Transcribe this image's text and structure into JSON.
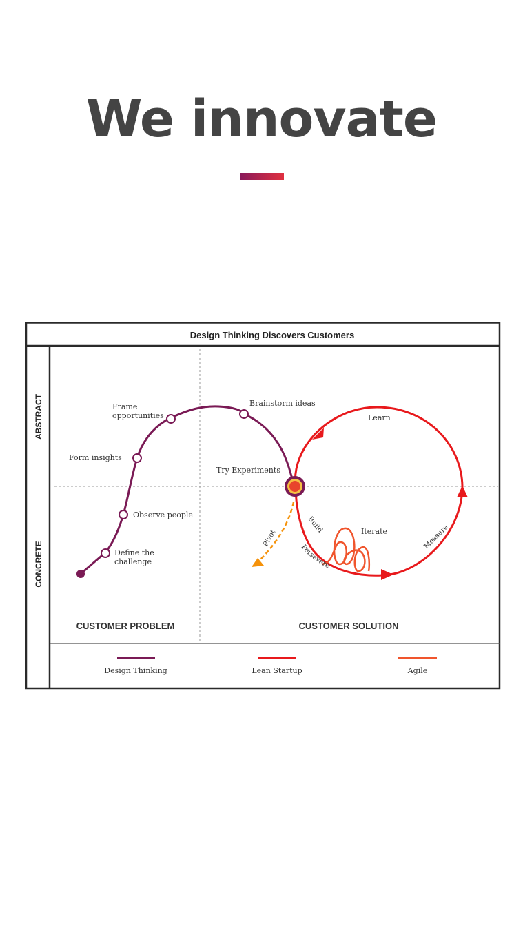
{
  "headline": "We innovate",
  "colors": {
    "headline": "#444444",
    "accent_start": "#8a1a5a",
    "accent_end": "#e03040",
    "design_thinking": "#7a1a55",
    "lean_startup": "#e8191c",
    "agile": "#f0552d",
    "pivot": "#f5920a"
  },
  "diagram": {
    "title": "Design Thinking Discovers Customers",
    "axis": {
      "abstract": "ABSTRACT",
      "concrete": "CONCRETE"
    },
    "regions": {
      "problem": "CUSTOMER PROBLEM",
      "solution": "CUSTOMER SOLUTION"
    },
    "steps": {
      "define_1": "Define the",
      "define_2": "challenge",
      "observe": "Observe people",
      "insights": "Form insights",
      "frame_1": "Frame",
      "frame_2": "opportunities",
      "brainstorm": "Brainstorm ideas",
      "experiments": "Try Experiments"
    },
    "cycle": {
      "learn": "Learn",
      "measure": "Measure",
      "build": "Build",
      "persevere": "Persevere",
      "iterate": "Iterate",
      "pivot": "Pivot"
    },
    "legend": [
      "Design Thinking",
      "Lean Startup",
      "Agile"
    ]
  }
}
